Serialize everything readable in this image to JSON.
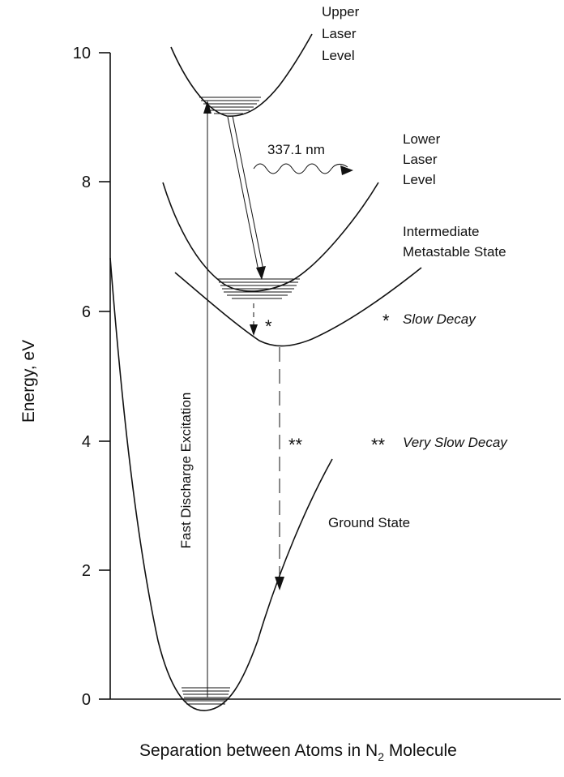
{
  "diagram": {
    "y_axis": {
      "label": "Energy, eV",
      "ticks": [
        "0",
        "2",
        "4",
        "6",
        "8",
        "10"
      ]
    },
    "x_axis": {
      "label_main": "Separation between Atoms in N",
      "label_sub": "2",
      "label_tail": " Molecule"
    },
    "states": {
      "upper": [
        "Upper",
        "Laser",
        "Level"
      ],
      "lower": [
        "Lower",
        "Laser",
        "Level"
      ],
      "intermediate": [
        "Intermediate",
        "Metastable State"
      ],
      "ground": "Ground State"
    },
    "wavelength": "337.1 nm",
    "excitation": "Fast Discharge Excitation",
    "markers": {
      "slow": "*",
      "very_slow": "**"
    },
    "legend": {
      "slow_star": "*",
      "slow_text": "Slow Decay",
      "very_slow_star": "**",
      "very_slow_text": "Very Slow Decay"
    }
  }
}
